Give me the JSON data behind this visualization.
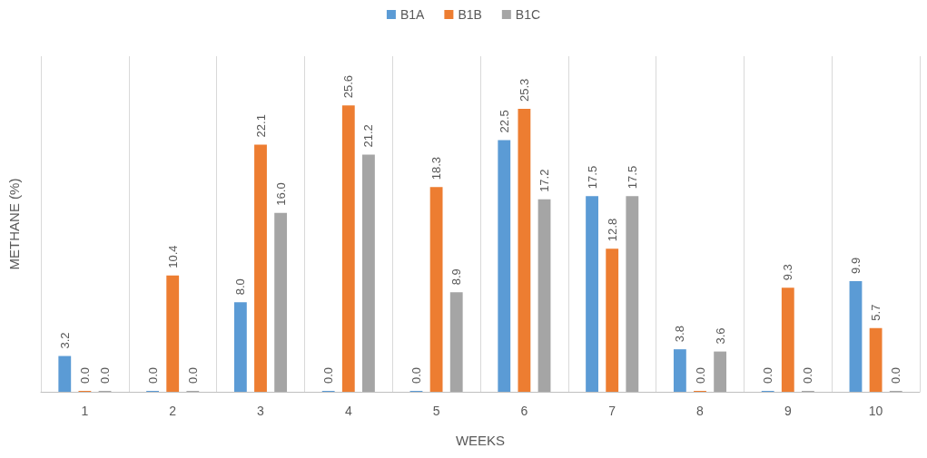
{
  "chart_data": {
    "type": "bar",
    "xlabel": "WEEKS",
    "ylabel": "METHANE (%)",
    "categories": [
      "1",
      "2",
      "3",
      "4",
      "5",
      "6",
      "7",
      "8",
      "9",
      "10"
    ],
    "series": [
      {
        "name": "B1A",
        "color": "#5b9bd5",
        "values": [
          3.2,
          0,
          8.0,
          0,
          0,
          22.5,
          17.5,
          3.8,
          0,
          9.9
        ],
        "value_labels": [
          "3.2",
          "0.0",
          "8.0",
          "0.0",
          "0.0",
          "22.5",
          "17.5",
          "3.8",
          "0.0",
          "9.9"
        ]
      },
      {
        "name": "B1B",
        "color": "#ed7d31",
        "values": [
          0,
          10.4,
          22.1,
          25.6,
          18.3,
          25.3,
          12.8,
          0,
          9.3,
          5.7
        ],
        "value_labels": [
          "0.0",
          "10.4",
          "22.1",
          "25.6",
          "18.3",
          "25.3",
          "12.8",
          "0.0",
          "9.3",
          "5.7"
        ]
      },
      {
        "name": "B1C",
        "color": "#a5a5a5",
        "values": [
          0,
          0,
          16.0,
          21.2,
          8.9,
          17.2,
          17.5,
          3.6,
          0,
          0
        ],
        "value_labels": [
          "0.0",
          "0.0",
          "16.0",
          "21.2",
          "8.9",
          "17.2",
          "17.5",
          "3.6",
          "0.0",
          "0.0"
        ]
      }
    ],
    "grid": "x",
    "legend": "top",
    "tick_labels": "x"
  }
}
